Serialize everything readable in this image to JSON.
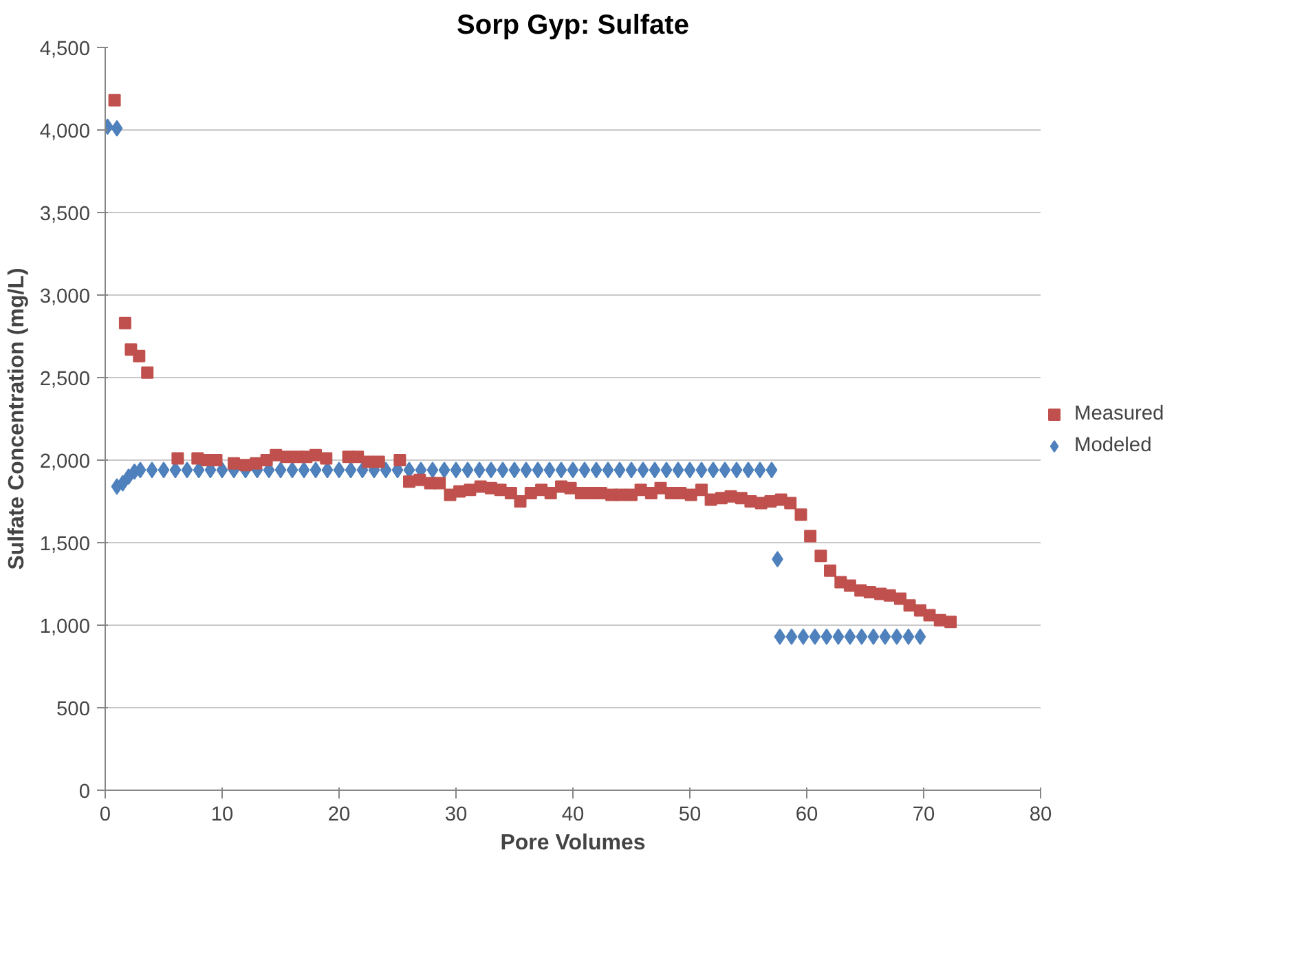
{
  "chart_data": {
    "type": "scatter",
    "title": "Sorp Gyp: Sulfate",
    "xlabel": "Pore Volumes",
    "ylabel": "Sulfate Concentration (mg/L)",
    "xlim": [
      0,
      80
    ],
    "xticks": [
      0,
      10,
      20,
      30,
      40,
      50,
      60,
      70,
      80
    ],
    "ylim": [
      0,
      4500
    ],
    "yticks": [
      {
        "value": 0,
        "label": "0"
      },
      {
        "value": 500,
        "label": "500"
      },
      {
        "value": 1000,
        "label": "1,000"
      },
      {
        "value": 1500,
        "label": "1,500"
      },
      {
        "value": 2000,
        "label": "2,000"
      },
      {
        "value": 2500,
        "label": "2,500"
      },
      {
        "value": 3000,
        "label": "3,000"
      },
      {
        "value": 3500,
        "label": "3,500"
      },
      {
        "value": 4000,
        "label": "4,000"
      },
      {
        "value": 4500,
        "label": "4,500"
      }
    ],
    "grid": "y",
    "legend": "right",
    "series": [
      {
        "name": "Measured",
        "color": "#c0504d",
        "marker": "square",
        "x": [
          0.8,
          1.7,
          2.2,
          2.9,
          3.6,
          6.2,
          7.9,
          8.7,
          9.5,
          11.0,
          12.0,
          12.9,
          13.8,
          14.6,
          15.5,
          16.4,
          17.2,
          18.0,
          18.9,
          20.8,
          21.6,
          22.5,
          23.4,
          25.2,
          26.0,
          26.9,
          27.8,
          28.6,
          29.5,
          30.3,
          31.2,
          32.1,
          33.0,
          33.8,
          34.7,
          35.5,
          36.4,
          37.3,
          38.1,
          39.0,
          39.8,
          40.7,
          41.5,
          42.4,
          43.3,
          44.1,
          45.0,
          45.8,
          46.7,
          47.5,
          48.4,
          49.2,
          50.1,
          51.0,
          51.8,
          52.7,
          53.5,
          54.4,
          55.2,
          56.1,
          56.9,
          57.8,
          58.6,
          59.5,
          60.3,
          61.2,
          62.0,
          62.9,
          63.7,
          64.6,
          65.4,
          66.3,
          67.1,
          68.0,
          68.8,
          69.7,
          70.5,
          71.4,
          72.3
        ],
        "values": [
          4180,
          2830,
          2670,
          2630,
          2530,
          2010,
          2010,
          2000,
          2000,
          1980,
          1970,
          1980,
          2000,
          2030,
          2020,
          2020,
          2020,
          2030,
          2010,
          2020,
          2020,
          1990,
          1990,
          2000,
          1870,
          1880,
          1860,
          1860,
          1790,
          1810,
          1820,
          1840,
          1830,
          1820,
          1800,
          1750,
          1800,
          1820,
          1800,
          1840,
          1830,
          1800,
          1800,
          1800,
          1790,
          1790,
          1790,
          1820,
          1800,
          1830,
          1800,
          1800,
          1790,
          1820,
          1760,
          1770,
          1780,
          1770,
          1750,
          1740,
          1750,
          1760,
          1740,
          1670,
          1540,
          1420,
          1330,
          1260,
          1240,
          1210,
          1200,
          1190,
          1180,
          1160,
          1120,
          1090,
          1060,
          1030,
          1020
        ]
      },
      {
        "name": "Modeled",
        "color": "#4f81bd",
        "marker": "diamond",
        "x": [
          0.2,
          1.0,
          1.0,
          1.5,
          2.0,
          2.5,
          3,
          4,
          5,
          6,
          7,
          8,
          9,
          10,
          11,
          12,
          13,
          14,
          15,
          16,
          17,
          18,
          19,
          20,
          21,
          22,
          23,
          24,
          25,
          26,
          27,
          28,
          29,
          30,
          31,
          32,
          33,
          34,
          35,
          36,
          37,
          38,
          39,
          40,
          41,
          42,
          43,
          44,
          45,
          46,
          47,
          48,
          49,
          50,
          51,
          52,
          53,
          54,
          55,
          56,
          57,
          57.5,
          57.7,
          58.7,
          59.7,
          60.7,
          61.7,
          62.7,
          63.7,
          64.7,
          65.7,
          66.7,
          67.7,
          68.7,
          69.7
        ],
        "values": [
          4020,
          4010,
          1840,
          1860,
          1900,
          1930,
          1940,
          1940,
          1940,
          1940,
          1940,
          1940,
          1940,
          1940,
          1940,
          1940,
          1940,
          1940,
          1940,
          1940,
          1940,
          1940,
          1940,
          1940,
          1940,
          1940,
          1940,
          1940,
          1940,
          1940,
          1940,
          1940,
          1940,
          1940,
          1940,
          1940,
          1940,
          1940,
          1940,
          1940,
          1940,
          1940,
          1940,
          1940,
          1940,
          1940,
          1940,
          1940,
          1940,
          1940,
          1940,
          1940,
          1940,
          1940,
          1940,
          1940,
          1940,
          1940,
          1940,
          1940,
          1940,
          1400,
          930,
          930,
          930,
          930,
          930,
          930,
          930,
          930,
          930,
          930,
          930,
          930,
          930
        ]
      }
    ]
  }
}
